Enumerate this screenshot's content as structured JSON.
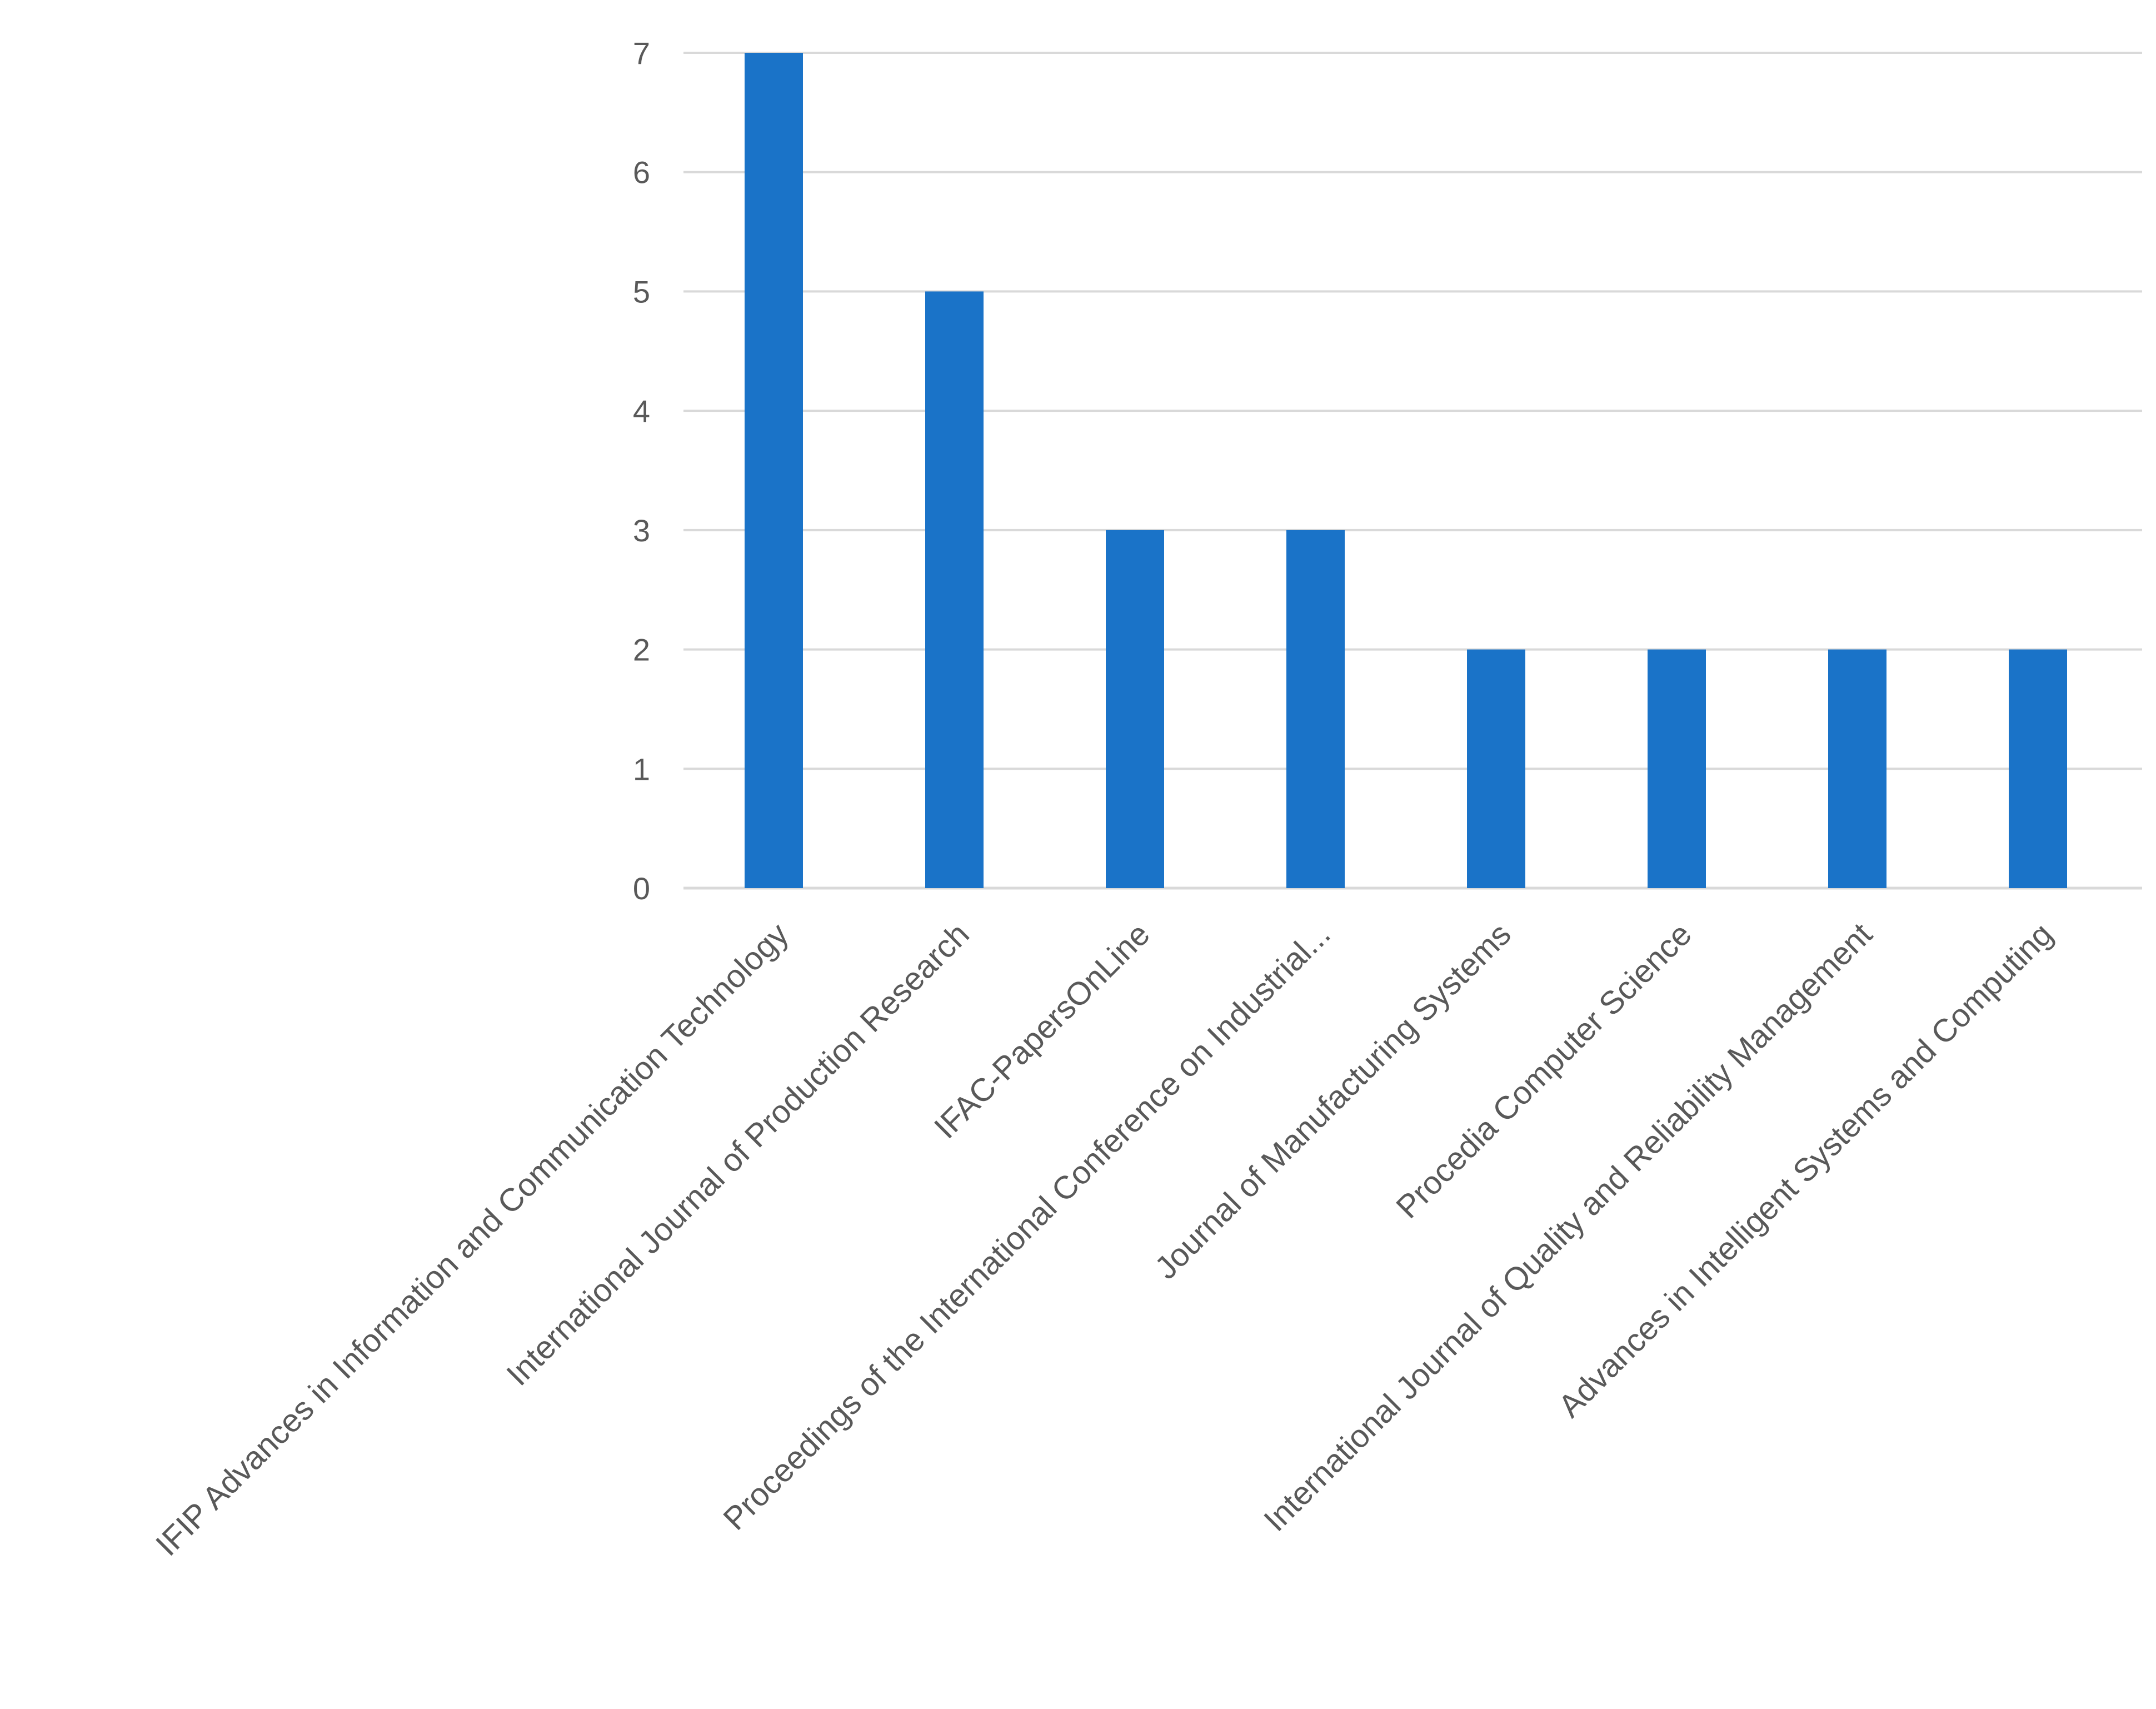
{
  "chart_data": {
    "type": "bar",
    "title": "",
    "xlabel": "",
    "ylabel": "",
    "ylim": [
      0,
      7
    ],
    "yticks": [
      0,
      1,
      2,
      3,
      4,
      5,
      6,
      7
    ],
    "grid": true,
    "legend": "none",
    "bar_color": "#1a73c8",
    "categories": [
      "IFIP Advances in Information and Communication Technology",
      "International Journal of Production Research",
      "IFAC-PapersOnLine",
      "Proceedings of the International Conference on Industrial...",
      "Journal of Manufacturing Systems",
      "Procedia Computer Science",
      "International Journal of Quality and Reliability Management",
      "Advances in Intelligent Systems and Computing"
    ],
    "values": [
      7,
      5,
      3,
      3,
      2,
      2,
      2,
      2
    ]
  }
}
